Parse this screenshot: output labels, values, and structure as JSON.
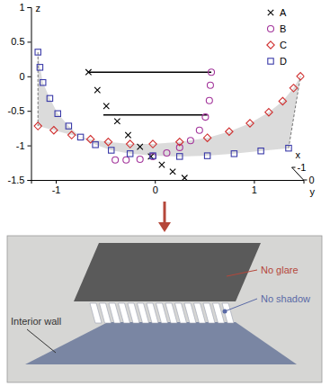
{
  "chart_data": {
    "type": "scatter3d",
    "xlabel": "x",
    "ylabel": "y",
    "zlabel": "z",
    "xlim": [
      -1,
      0
    ],
    "xticks": [
      -1,
      0
    ],
    "ylim": [
      -1.25,
      1.5
    ],
    "yticks": [
      -1,
      0,
      1
    ],
    "zlim": [
      -1.5,
      1
    ],
    "zticks": [
      1,
      0.5,
      0,
      -0.5,
      -1,
      -1.5
    ],
    "legend": "top-right",
    "series": [
      {
        "name": "A",
        "color": "#000000",
        "marker": "x",
        "y": [
          -0.67,
          -0.58,
          -0.49,
          -0.38,
          -0.27,
          -0.15,
          -0.04,
          0.07,
          0.18,
          0.3
        ],
        "z": [
          0.06,
          -0.2,
          -0.43,
          -0.65,
          -0.85,
          -1.02,
          -1.16,
          -1.28,
          -1.38,
          -1.47
        ]
      },
      {
        "name": "B",
        "color": "#a3359b",
        "marker": "circle",
        "y": [
          -0.4,
          -0.29,
          -0.15,
          -0.02,
          0.12,
          0.25,
          0.36,
          0.45,
          0.51,
          0.55,
          0.56,
          0.57
        ],
        "z": [
          -1.21,
          -1.21,
          -1.2,
          -1.16,
          -1.11,
          -1.03,
          -0.93,
          -0.78,
          -0.59,
          -0.35,
          -0.13,
          0.06
        ]
      },
      {
        "name": "C",
        "color": "#d03030",
        "marker": "diamond",
        "y": [
          -1.18,
          -1.02,
          -0.84,
          -0.65,
          -0.47,
          -0.25,
          -0.02,
          0.25,
          0.53,
          0.75,
          0.96,
          1.15,
          1.29,
          1.4,
          1.47
        ],
        "z": [
          -0.72,
          -0.78,
          -0.85,
          -0.91,
          -0.95,
          -0.98,
          -0.98,
          -0.95,
          -0.89,
          -0.8,
          -0.68,
          -0.52,
          -0.36,
          -0.17,
          0.0
        ]
      },
      {
        "name": "D",
        "color": "#3a3aa8",
        "marker": "square",
        "y": [
          -1.18,
          -1.16,
          -1.13,
          -1.06,
          -0.98,
          -0.87,
          -0.75,
          -0.6,
          -0.44,
          -0.25,
          -0.02,
          0.25,
          0.53,
          0.8,
          1.07,
          1.35
        ],
        "z": [
          0.35,
          0.13,
          -0.09,
          -0.32,
          -0.54,
          -0.72,
          -0.88,
          -0.99,
          -1.07,
          -1.12,
          -1.15,
          -1.16,
          -1.15,
          -1.12,
          -1.08,
          -1.04
        ]
      }
    ],
    "segments": [
      {
        "color": "#000000",
        "y": [
          -0.67,
          0.57
        ],
        "z": [
          0.06,
          0.06
        ]
      },
      {
        "color": "#000000",
        "y": [
          -0.52,
          0.53
        ],
        "z": [
          -0.56,
          -0.56
        ]
      }
    ]
  },
  "illustration": {
    "labels": [
      "No glare",
      "No shadow",
      "Interior wall"
    ]
  }
}
